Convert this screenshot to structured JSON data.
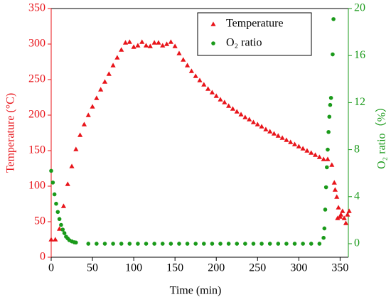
{
  "chart_data": {
    "type": "scatter",
    "xlabel": "Time (min)",
    "ylabel": "Temperature (°C)",
    "y2label": "O₂ ratio（%）",
    "xlim": [
      0,
      360
    ],
    "xticks": [
      0,
      50,
      100,
      150,
      200,
      250,
      300,
      350
    ],
    "ylim": [
      0,
      350
    ],
    "yticks": [
      0,
      50,
      100,
      150,
      200,
      250,
      300,
      350
    ],
    "y2lim": [
      -1.15,
      20
    ],
    "y2ticks": [
      0,
      4,
      8,
      12,
      16,
      20
    ],
    "legend": "upper right",
    "series": [
      {
        "name": "Temperature",
        "color": "#e8141a",
        "marker": "triangle",
        "x": [
          0,
          5,
          10,
          15,
          20,
          25,
          30,
          35,
          40,
          45,
          50,
          55,
          60,
          65,
          70,
          75,
          80,
          85,
          90,
          95,
          100,
          105,
          110,
          115,
          120,
          125,
          130,
          135,
          140,
          145,
          150,
          155,
          160,
          165,
          170,
          175,
          180,
          185,
          190,
          195,
          200,
          205,
          210,
          215,
          220,
          225,
          230,
          235,
          240,
          245,
          250,
          255,
          260,
          265,
          270,
          275,
          280,
          285,
          290,
          295,
          300,
          305,
          310,
          315,
          320,
          325,
          330,
          335,
          340,
          343,
          344,
          346,
          347,
          348,
          350,
          351,
          353,
          355,
          357,
          359,
          361
        ],
        "values": [
          25,
          25,
          40,
          72,
          103,
          128,
          152,
          172,
          187,
          200,
          212,
          224,
          236,
          247,
          258,
          270,
          281,
          292,
          302,
          303,
          296,
          298,
          303,
          298,
          297,
          302,
          302,
          298,
          300,
          303,
          297,
          287,
          278,
          270,
          262,
          255,
          249,
          243,
          237,
          232,
          227,
          222,
          218,
          213,
          209,
          205,
          201,
          197,
          194,
          190,
          187,
          184,
          180,
          177,
          174,
          171,
          168,
          165,
          162,
          159,
          156,
          153,
          150,
          147,
          144,
          141,
          138,
          138,
          130,
          105,
          95,
          85,
          55,
          70,
          57,
          60,
          65,
          55,
          48,
          60,
          65
        ]
      },
      {
        "name": "O₂ ratio",
        "color": "#1a9a1a",
        "marker": "circle",
        "axis": "y2",
        "x": [
          0,
          2,
          4,
          6,
          8,
          10,
          12,
          14,
          16,
          18,
          20,
          22,
          25,
          28,
          30,
          45,
          55,
          65,
          75,
          85,
          95,
          105,
          115,
          125,
          135,
          145,
          155,
          165,
          175,
          185,
          195,
          205,
          215,
          225,
          235,
          245,
          255,
          265,
          275,
          285,
          295,
          305,
          315,
          325,
          330,
          331,
          332,
          333,
          334,
          335,
          336,
          337,
          338,
          339,
          341,
          342
        ],
        "values": [
          6.2,
          5.2,
          4.2,
          3.4,
          2.7,
          2.1,
          1.6,
          1.2,
          0.9,
          0.6,
          0.45,
          0.3,
          0.2,
          0.12,
          0.1,
          0,
          0,
          0,
          0,
          0,
          0,
          0,
          0,
          0,
          0,
          0,
          0,
          0,
          0,
          0,
          0,
          0,
          0,
          0,
          0,
          0,
          0,
          0,
          0,
          0,
          0,
          0,
          0,
          0,
          0.5,
          1.3,
          2.9,
          4.8,
          6.5,
          8.0,
          9.5,
          10.8,
          11.8,
          12.4,
          16.1,
          19.1
        ]
      }
    ]
  }
}
